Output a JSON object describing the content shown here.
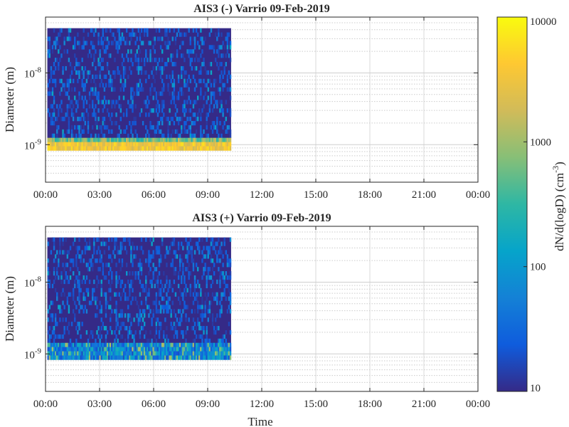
{
  "chart_data": [
    {
      "type": "heatmap",
      "title": "AIS3 (-) Varrio 09-Feb-2019",
      "xlabel": "",
      "ylabel": "Diameter (m)",
      "x_ticks": [
        "00:00",
        "03:00",
        "06:00",
        "09:00",
        "12:00",
        "15:00",
        "18:00",
        "21:00",
        "00:00"
      ],
      "xlim_hours": [
        0,
        24
      ],
      "data_time_range_hours": [
        0.1,
        10.3
      ],
      "y_scale": "log",
      "ylim_m": [
        3e-10,
        6e-08
      ],
      "y_tick_values_m": [
        1e-09,
        1e-08
      ],
      "y_tick_labels": [
        {
          "base": "10",
          "exp": "-9"
        },
        {
          "base": "10",
          "exp": "-8"
        }
      ],
      "data_diameter_range_m": [
        8.3e-10,
        4.2e-08
      ],
      "high_concentration_band_m": [
        8.3e-10,
        1.2e-09
      ],
      "grid": true,
      "minor_grid": "dotted"
    },
    {
      "type": "heatmap",
      "title": "AIS3 (+) Varrio 09-Feb-2019",
      "xlabel": "Time",
      "ylabel": "Diameter (m)",
      "x_ticks": [
        "00:00",
        "03:00",
        "06:00",
        "09:00",
        "12:00",
        "15:00",
        "18:00",
        "21:00",
        "00:00"
      ],
      "xlim_hours": [
        0,
        24
      ],
      "data_time_range_hours": [
        0.1,
        10.3
      ],
      "y_scale": "log",
      "ylim_m": [
        3e-10,
        6e-08
      ],
      "y_tick_values_m": [
        1e-09,
        1e-08
      ],
      "y_tick_labels": [
        {
          "base": "10",
          "exp": "-9"
        },
        {
          "base": "10",
          "exp": "-8"
        }
      ],
      "data_diameter_range_m": [
        8.3e-10,
        4.2e-08
      ],
      "high_concentration_band_m": [
        8.3e-10,
        1.4e-09
      ],
      "grid": true,
      "minor_grid": "dotted"
    }
  ],
  "colorbar": {
    "label": "dN/d(logD) (cm",
    "label_exponent": "-3",
    "label_close": ")",
    "scale": "log",
    "range": [
      10,
      10000
    ],
    "tick_values": [
      10,
      100,
      1000,
      10000
    ],
    "tick_labels": [
      "10",
      "100",
      "1000",
      "10000"
    ],
    "colormap": "parula",
    "colors": [
      "#352a87",
      "#0f5cdd",
      "#1481d6",
      "#06a4ca",
      "#2eb7a4",
      "#87bf77",
      "#d1bb59",
      "#fec832",
      "#f9fb0e"
    ]
  }
}
